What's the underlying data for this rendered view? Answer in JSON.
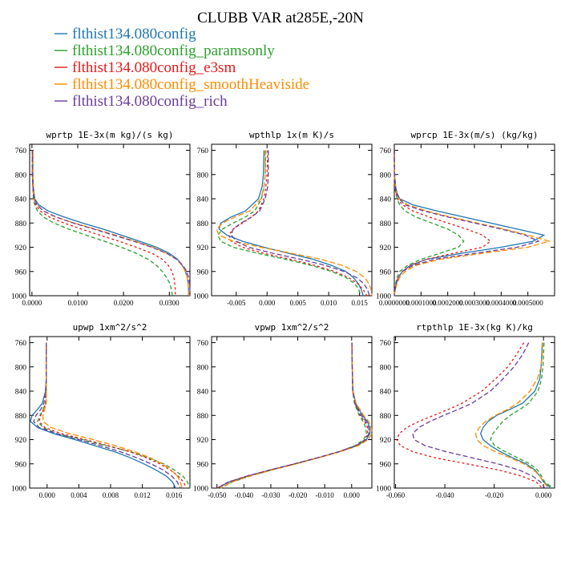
{
  "title": "CLUBB VAR at285E,-20N",
  "legend": [
    {
      "label": "flthist134.080config",
      "color": "#1f77b4"
    },
    {
      "label": "flthist134.080config_paramsonly",
      "color": "#2ca02c"
    },
    {
      "label": "flthist134.080config_e3sm",
      "color": "#e41a1c"
    },
    {
      "label": "flthist134.080config_smoothHeaviside",
      "color": "#ff8c00"
    },
    {
      "label": "flthist134.080config_rich",
      "color": "#6a3d9a"
    }
  ],
  "chart_data": [
    {
      "type": "line",
      "title": "wprtp  1E-3x(m kg)/(s kg)",
      "ylim": [
        1000,
        750
      ],
      "yticks": [
        "760",
        "800",
        "840",
        "880",
        "920",
        "960",
        "1000"
      ],
      "xlim": [
        -0.0005,
        0.0345
      ],
      "xticks": [
        "0.0000",
        "0.0100",
        "0.0200",
        "0.0300"
      ],
      "xtick_values": [
        0,
        0.01,
        0.02,
        0.03
      ],
      "y": [
        760,
        780,
        800,
        820,
        840,
        850,
        860,
        870,
        880,
        890,
        900,
        910,
        920,
        930,
        940,
        950,
        960,
        970,
        980,
        990,
        1000
      ],
      "series": [
        {
          "values": [
            0.0002,
            0.0002,
            0.0002,
            0.0003,
            0.0006,
            0.0015,
            0.0035,
            0.007,
            0.011,
            0.0155,
            0.0195,
            0.0235,
            0.0272,
            0.03,
            0.0318,
            0.0328,
            0.0335,
            0.0339,
            0.0341,
            0.0342,
            0.0342
          ]
        },
        {
          "values": [
            0.0001,
            0.0001,
            0.0001,
            0.0002,
            0.0003,
            0.0006,
            0.0012,
            0.0025,
            0.0048,
            0.008,
            0.0118,
            0.0158,
            0.0195,
            0.0228,
            0.0254,
            0.0272,
            0.0285,
            0.0294,
            0.0301,
            0.0305,
            0.0307
          ]
        },
        {
          "values": [
            0.0001,
            0.0001,
            0.0001,
            0.0002,
            0.0004,
            0.0008,
            0.0018,
            0.0038,
            0.007,
            0.0108,
            0.0148,
            0.019,
            0.0228,
            0.0262,
            0.0285,
            0.0298,
            0.0306,
            0.031,
            0.0312,
            0.0313,
            0.0313
          ]
        },
        {
          "values": [
            0.0002,
            0.0002,
            0.0002,
            0.0003,
            0.0005,
            0.0011,
            0.0025,
            0.0052,
            0.0092,
            0.0138,
            0.0182,
            0.0226,
            0.0264,
            0.0295,
            0.0316,
            0.0328,
            0.0335,
            0.0339,
            0.0341,
            0.0342,
            0.0343
          ]
        },
        {
          "values": [
            0.0001,
            0.0001,
            0.0001,
            0.0002,
            0.0005,
            0.0011,
            0.0025,
            0.0052,
            0.009,
            0.0135,
            0.0178,
            0.0222,
            0.0262,
            0.0294,
            0.0316,
            0.033,
            0.0338,
            0.0342,
            0.0344,
            0.0345,
            0.0345
          ]
        }
      ]
    },
    {
      "type": "line",
      "title": "wpthlp  1x(m K)/s",
      "ylim": [
        1000,
        750
      ],
      "yticks": [
        "760",
        "800",
        "840",
        "880",
        "920",
        "960",
        "1000"
      ],
      "xlim": [
        -0.009,
        0.017
      ],
      "xticks": [
        "-0.005",
        "0.000",
        "0.005",
        "0.010",
        "0.015"
      ],
      "xtick_values": [
        -0.005,
        0,
        0.005,
        0.01,
        0.015
      ],
      "y": [
        760,
        800,
        820,
        840,
        860,
        870,
        880,
        890,
        900,
        910,
        920,
        930,
        940,
        950,
        960,
        970,
        980,
        990,
        1000
      ],
      "series": [
        {
          "values": [
            -0.0005,
            -0.0006,
            -0.0008,
            -0.0014,
            -0.0035,
            -0.0058,
            -0.0075,
            -0.0078,
            -0.0065,
            -0.004,
            -0.0005,
            0.0035,
            0.0075,
            0.0105,
            0.0128,
            0.014,
            0.0148,
            0.0153,
            0.0156
          ]
        },
        {
          "values": [
            -0.0002,
            -0.0003,
            -0.0005,
            -0.0009,
            -0.002,
            -0.0035,
            -0.0055,
            -0.0072,
            -0.008,
            -0.0075,
            -0.0055,
            -0.0015,
            0.003,
            0.0072,
            0.0105,
            0.0128,
            0.0142,
            0.0149,
            0.0152
          ]
        },
        {
          "values": [
            0.0001,
            0.0,
            -0.0002,
            -0.0005,
            -0.0014,
            -0.0025,
            -0.004,
            -0.0055,
            -0.0062,
            -0.0058,
            -0.004,
            -0.0005,
            0.0038,
            0.0078,
            0.011,
            0.0132,
            0.0147,
            0.0156,
            0.0162
          ]
        },
        {
          "values": [
            -0.0003,
            -0.0003,
            -0.0005,
            -0.001,
            -0.0028,
            -0.0052,
            -0.0072,
            -0.0082,
            -0.0078,
            -0.0055,
            -0.001,
            0.004,
            0.0088,
            0.0122,
            0.0145,
            0.0158,
            0.0165,
            0.0169,
            0.017
          ]
        },
        {
          "values": [
            0.0002,
            0.0002,
            0.0001,
            -0.0003,
            -0.0012,
            -0.0025,
            -0.0042,
            -0.0055,
            -0.0058,
            -0.005,
            -0.003,
            0.001,
            0.0055,
            0.0095,
            0.0125,
            0.0145,
            0.0157,
            0.0163,
            0.0166
          ]
        }
      ]
    },
    {
      "type": "line",
      "title": "wprcp  1E-3x(m/s) (kg/kg)",
      "ylim": [
        1000,
        750
      ],
      "yticks": [
        "760",
        "800",
        "840",
        "880",
        "920",
        "960",
        "1000"
      ],
      "xlim": [
        0,
        0.0006
      ],
      "xticks": [
        "0.0000",
        "0.0001",
        "0.0002",
        "0.0003",
        "0.0004",
        "0.0005"
      ],
      "xtick_values": [
        0,
        0.0001,
        0.0002,
        0.0003,
        0.0004,
        0.0005
      ],
      "xtick_text": [
        "0.0000000",
        "0.0001000",
        "0.0002000",
        "0.0003000",
        "0.0004000",
        "0.0005000"
      ],
      "y": [
        760,
        800,
        820,
        830,
        840,
        850,
        860,
        870,
        880,
        890,
        900,
        910,
        920,
        930,
        940,
        950,
        960,
        970,
        980,
        990,
        1000
      ],
      "series": [
        {
          "values": [
            0.0,
            1e-06,
            5e-06,
            1e-05,
            2e-05,
            7e-05,
            0.00016,
            0.00026,
            0.00036,
            0.00046,
            0.00056,
            0.00052,
            0.0004,
            0.00025,
            0.00012,
            6e-05,
            3e-05,
            1.5e-05,
            7e-06,
            3e-06,
            0.0
          ]
        },
        {
          "values": [
            0.0,
            0.0,
            2e-06,
            5e-06,
            1e-05,
            2e-05,
            4e-05,
            8e-05,
            0.00014,
            0.0002,
            0.00024,
            0.00026,
            0.00024,
            0.00017,
            0.0001,
            5e-05,
            2e-05,
            1e-05,
            5e-06,
            2e-06,
            0.0
          ]
        },
        {
          "values": [
            0.0,
            0.0,
            3e-06,
            6e-06,
            1.2e-05,
            3e-05,
            7e-05,
            0.00013,
            0.0002,
            0.00027,
            0.00033,
            0.00036,
            0.00033,
            0.00022,
            0.00012,
            6e-05,
            3e-05,
            1.5e-05,
            7e-06,
            3e-06,
            0.0
          ]
        },
        {
          "values": [
            0.0,
            1e-06,
            4e-06,
            8e-06,
            1.8e-05,
            5e-05,
            0.00012,
            0.00021,
            0.00031,
            0.00041,
            0.0005,
            0.00058,
            0.0005,
            0.00033,
            0.00017,
            8e-05,
            4e-05,
            2e-05,
            1e-05,
            4e-06,
            0.0
          ]
        },
        {
          "values": [
            0.0,
            1e-06,
            4e-06,
            8e-06,
            1.8e-05,
            4e-05,
            0.00011,
            0.0002,
            0.0003,
            0.0004,
            0.00049,
            0.00054,
            0.00046,
            0.0003,
            0.00015,
            7e-05,
            3e-05,
            1.5e-05,
            7e-06,
            3e-06,
            0.0
          ]
        }
      ]
    },
    {
      "type": "line",
      "title": "upwp  1xm^2/s^2",
      "ylim": [
        1000,
        750
      ],
      "yticks": [
        "760",
        "800",
        "840",
        "880",
        "920",
        "960",
        "1000"
      ],
      "xlim": [
        -0.0022,
        0.018
      ],
      "xticks": [
        "0.000",
        "0.004",
        "0.008",
        "0.012",
        "0.016"
      ],
      "xtick_values": [
        0,
        0.004,
        0.008,
        0.012,
        0.016
      ],
      "y": [
        760,
        800,
        820,
        840,
        860,
        870,
        880,
        890,
        900,
        910,
        920,
        930,
        940,
        950,
        960,
        970,
        980,
        990,
        1000
      ],
      "series": [
        {
          "values": [
            -0.0001,
            -0.0001,
            -0.0001,
            -0.0002,
            -0.0006,
            -0.0012,
            -0.0019,
            -0.0021,
            -0.0012,
            0.0008,
            0.0035,
            0.006,
            0.0085,
            0.0105,
            0.0122,
            0.0137,
            0.015,
            0.0158,
            0.0162
          ]
        },
        {
          "values": [
            -0.0001,
            -0.0001,
            -0.0001,
            -0.0001,
            -0.0002,
            -0.0005,
            -0.0009,
            -0.0012,
            -0.0005,
            0.0012,
            0.0045,
            0.0075,
            0.0105,
            0.0128,
            0.0147,
            0.016,
            0.0171,
            0.0177,
            0.018
          ]
        },
        {
          "values": [
            -0.0001,
            -0.0001,
            -0.0001,
            -0.0001,
            -0.0002,
            -0.0004,
            -0.0008,
            -0.001,
            -0.0003,
            0.0018,
            0.0048,
            0.0077,
            0.0104,
            0.0125,
            0.0142,
            0.0155,
            0.0165,
            0.0172,
            0.0175
          ]
        },
        {
          "values": [
            -0.0001,
            -0.0001,
            -0.0001,
            -0.0001,
            -0.0001,
            -0.0003,
            -0.0005,
            -0.0005,
            0.0005,
            0.0028,
            0.0058,
            0.0086,
            0.011,
            0.013,
            0.0145,
            0.0156,
            0.0164,
            0.0168,
            0.017
          ]
        },
        {
          "values": [
            -0.0001,
            -0.0001,
            -0.0001,
            -0.0002,
            -0.0004,
            -0.0008,
            -0.0014,
            -0.0017,
            -0.001,
            0.0012,
            0.004,
            0.0067,
            0.0092,
            0.0113,
            0.0131,
            0.0146,
            0.0157,
            0.0164,
            0.0168
          ]
        }
      ]
    },
    {
      "type": "line",
      "title": "vpwp  1xm^2/s^2",
      "ylim": [
        1000,
        750
      ],
      "yticks": [
        "760",
        "800",
        "840",
        "880",
        "920",
        "960",
        "1000"
      ],
      "xlim": [
        -0.052,
        0.0075
      ],
      "xticks": [
        "-0.050",
        "-0.040",
        "-0.030",
        "-0.020",
        "-0.010",
        "0.000"
      ],
      "xtick_values": [
        -0.05,
        -0.04,
        -0.03,
        -0.02,
        -0.01,
        0.0
      ],
      "y": [
        760,
        800,
        840,
        860,
        880,
        890,
        900,
        910,
        920,
        930,
        940,
        950,
        960,
        970,
        980,
        990,
        1000
      ],
      "series": [
        {
          "values": [
            0.0001,
            0.0002,
            0.0005,
            0.0015,
            0.004,
            0.0058,
            0.0068,
            0.0068,
            0.0055,
            0.002,
            -0.0045,
            -0.0125,
            -0.021,
            -0.03,
            -0.0385,
            -0.0455,
            -0.0497
          ]
        },
        {
          "values": [
            0.0001,
            0.0002,
            0.0004,
            0.001,
            0.0028,
            0.0042,
            0.0052,
            0.0055,
            0.0045,
            0.0012,
            -0.0048,
            -0.0125,
            -0.0208,
            -0.0295,
            -0.0375,
            -0.0443,
            -0.0485
          ]
        },
        {
          "values": [
            0.0001,
            0.0002,
            0.0004,
            0.0012,
            0.0032,
            0.0048,
            0.0058,
            0.006,
            0.005,
            0.0016,
            -0.0046,
            -0.0126,
            -0.0212,
            -0.0302,
            -0.0388,
            -0.0458,
            -0.05
          ]
        },
        {
          "values": [
            0.0001,
            0.0002,
            0.0005,
            0.0016,
            0.0045,
            0.0063,
            0.0073,
            0.0075,
            0.0062,
            0.0025,
            -0.0042,
            -0.0122,
            -0.0206,
            -0.0293,
            -0.0376,
            -0.0445,
            -0.0487
          ]
        },
        {
          "values": [
            0.0001,
            0.0002,
            0.0004,
            0.0012,
            0.0035,
            0.0053,
            0.0063,
            0.0064,
            0.0052,
            0.0016,
            -0.0048,
            -0.0128,
            -0.0213,
            -0.0302,
            -0.0387,
            -0.0456,
            -0.0498
          ]
        }
      ]
    },
    {
      "type": "line",
      "title": "rtpthlp  1E-3x(kg K)/kg",
      "ylim": [
        1000,
        750
      ],
      "yticks": [
        "760",
        "800",
        "840",
        "880",
        "920",
        "960",
        "1000"
      ],
      "xlim": [
        -0.0605,
        0.0045
      ],
      "xticks": [
        "-0.060",
        "-0.040",
        "-0.020",
        "0.000"
      ],
      "xtick_values": [
        -0.06,
        -0.04,
        -0.02,
        0.0
      ],
      "y": [
        760,
        780,
        800,
        820,
        840,
        860,
        870,
        880,
        890,
        900,
        910,
        920,
        930,
        940,
        950,
        960,
        970,
        980,
        990,
        1000
      ],
      "series": [
        {
          "values": [
            -0.0005,
            -0.0007,
            -0.001,
            -0.0015,
            -0.0035,
            -0.0085,
            -0.0135,
            -0.019,
            -0.0225,
            -0.0245,
            -0.0255,
            -0.0245,
            -0.0215,
            -0.0175,
            -0.0125,
            -0.007,
            -0.0035,
            -0.0015,
            0.0,
            0.003
          ]
        },
        {
          "values": [
            0.0002,
            0.0,
            -0.0002,
            -0.0008,
            -0.0022,
            -0.006,
            -0.0095,
            -0.0135,
            -0.0165,
            -0.0185,
            -0.0205,
            -0.0215,
            -0.0198,
            -0.0155,
            -0.0105,
            -0.0055,
            -0.0025,
            -0.0008,
            0.0005,
            0.004
          ]
        },
        {
          "values": [
            -0.008,
            -0.011,
            -0.0145,
            -0.0195,
            -0.025,
            -0.033,
            -0.0385,
            -0.0445,
            -0.0505,
            -0.0555,
            -0.0585,
            -0.0595,
            -0.058,
            -0.053,
            -0.044,
            -0.031,
            -0.0185,
            -0.009,
            -0.003,
            -0.0005
          ]
        },
        {
          "values": [
            -0.0003,
            -0.0005,
            -0.001,
            -0.0025,
            -0.0055,
            -0.0105,
            -0.0145,
            -0.0195,
            -0.0235,
            -0.026,
            -0.0275,
            -0.027,
            -0.0245,
            -0.0195,
            -0.0135,
            -0.008,
            -0.004,
            -0.0015,
            0.0,
            0.002
          ]
        },
        {
          "values": [
            -0.006,
            -0.0085,
            -0.012,
            -0.0165,
            -0.0215,
            -0.029,
            -0.0345,
            -0.0405,
            -0.046,
            -0.0505,
            -0.053,
            -0.0525,
            -0.048,
            -0.0395,
            -0.029,
            -0.0185,
            -0.01,
            -0.0045,
            -0.0012,
            0.0005
          ]
        }
      ]
    }
  ]
}
